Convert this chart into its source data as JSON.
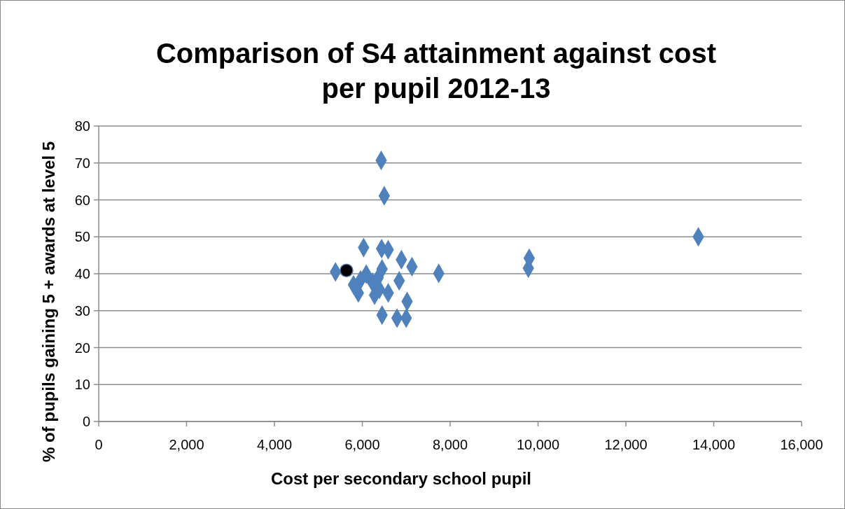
{
  "chart_data": {
    "type": "scatter",
    "title": "Comparison of S4 attainment against cost per pupil 2012-13",
    "xlabel": "Cost per secondary school pupil",
    "ylabel": "% of pupils gaining 5 + awards at level 5",
    "xlim": [
      0,
      16000
    ],
    "xticks": [
      {
        "value": 0,
        "label": "0"
      },
      {
        "value": 2000,
        "label": "2,000"
      },
      {
        "value": 4000,
        "label": "4,000"
      },
      {
        "value": 6000,
        "label": "6,000"
      },
      {
        "value": 8000,
        "label": "8,000"
      },
      {
        "value": 10000,
        "label": "10,000"
      },
      {
        "value": 12000,
        "label": "12,000"
      },
      {
        "value": 14000,
        "label": "14,000"
      },
      {
        "value": 16000,
        "label": "16,000"
      }
    ],
    "ylim": [
      0,
      80
    ],
    "yticks": [
      0,
      10,
      20,
      30,
      40,
      50,
      60,
      70,
      80
    ],
    "grid": "y",
    "series": [
      {
        "color": "#4f81bd",
        "marker": "diamond",
        "x": [
          6430,
          6500,
          6030,
          6440,
          6590,
          6890,
          7130,
          7740,
          5390,
          6090,
          6450,
          6360,
          6840,
          5800,
          5960,
          6230,
          6390,
          5910,
          6280,
          6590,
          7020,
          6450,
          6790,
          7000,
          9800,
          9780,
          13650
        ],
        "values": [
          70.7,
          61.1,
          47.1,
          46.8,
          46.5,
          43.8,
          41.9,
          40.1,
          40.5,
          39.9,
          41.3,
          38.9,
          38.1,
          37.0,
          38.3,
          37.7,
          35.8,
          34.8,
          34.2,
          34.8,
          32.5,
          28.8,
          28.0,
          28.0,
          44.2,
          41.5,
          50.0
        ]
      },
      {
        "color": "#000000",
        "marker": "circle",
        "x": [
          5640
        ],
        "values": [
          40.9
        ]
      }
    ]
  }
}
